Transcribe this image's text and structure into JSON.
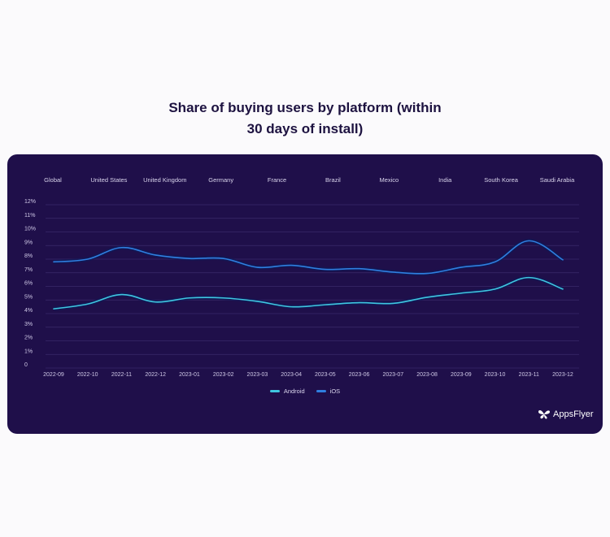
{
  "title": {
    "line1": "Share of buying users by platform (within",
    "line2": "30 days of install)"
  },
  "countries": [
    "Global",
    "United States",
    "United Kingdom",
    "Germany",
    "France",
    "Brazil",
    "Mexico",
    "India",
    "South Korea",
    "Saudi Arabia"
  ],
  "legend": {
    "android": "Android",
    "ios": "iOS"
  },
  "logo": {
    "text": "AppsFlyer",
    "icon": "butterfly-icon"
  },
  "colors": {
    "card_bg": "#1f0f4a",
    "page_bg": "#fbfafc",
    "title": "#1d1240",
    "android": "#3fc6e0",
    "ios": "#2f7fe0",
    "grid": "#3a2a6a"
  },
  "chart_data": {
    "type": "line",
    "title": "Share of buying users by platform (within 30 days of install)",
    "xlabel": "",
    "ylabel": "",
    "categories": [
      "2022-09",
      "2022-10",
      "2022-11",
      "2022-12",
      "2023-01",
      "2023-02",
      "2023-03",
      "2023-04",
      "2023-05",
      "2023-06",
      "2023-07",
      "2023-08",
      "2023-09",
      "2023-10",
      "2023-11",
      "2023-12"
    ],
    "series": [
      {
        "name": "Android",
        "values": [
          4.35,
          4.7,
          5.4,
          4.85,
          5.15,
          5.15,
          4.9,
          4.5,
          4.65,
          4.8,
          4.75,
          5.2,
          5.5,
          5.8,
          6.65,
          5.8
        ]
      },
      {
        "name": "iOS",
        "values": [
          7.8,
          8.0,
          8.85,
          8.3,
          8.05,
          8.05,
          7.4,
          7.55,
          7.25,
          7.3,
          7.05,
          6.95,
          7.4,
          7.8,
          9.35,
          7.95
        ]
      }
    ],
    "yticks": [
      "0",
      "1%",
      "2%",
      "3%",
      "4%",
      "5%",
      "6%",
      "7%",
      "8%",
      "9%",
      "10%",
      "11%",
      "12%"
    ],
    "ylim": [
      0,
      12
    ],
    "grid": true,
    "legend_position": "bottom",
    "top_labels": [
      "Global",
      "United States",
      "United Kingdom",
      "Germany",
      "France",
      "Brazil",
      "Mexico",
      "India",
      "South Korea",
      "Saudi Arabia"
    ]
  }
}
